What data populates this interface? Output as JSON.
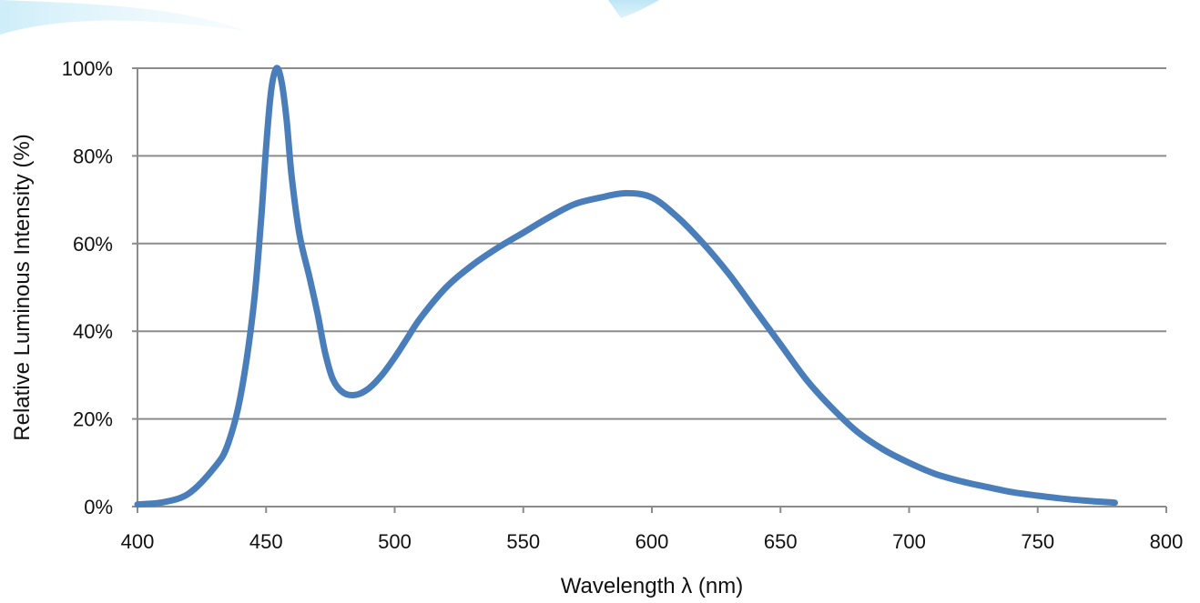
{
  "chart_data": {
    "type": "line",
    "title": "",
    "xlabel": "Wavelength λ (nm)",
    "ylabel": "Relative Luminous Intensity (%)",
    "xlim": [
      400,
      800
    ],
    "ylim": [
      0,
      100
    ],
    "x_ticks": [
      400,
      450,
      500,
      550,
      600,
      650,
      700,
      750,
      800
    ],
    "x_tick_labels": [
      "400",
      "450",
      "500",
      "550",
      "600",
      "650",
      "700",
      "750",
      "800"
    ],
    "y_ticks": [
      0,
      20,
      40,
      60,
      80,
      100
    ],
    "y_tick_labels": [
      "0%",
      "20%",
      "40%",
      "60%",
      "80%",
      "100%"
    ],
    "grid": "horizontal",
    "legend": "none",
    "series": [
      {
        "color": "#4a7ebb",
        "points": [
          [
            400,
            0.5
          ],
          [
            410,
            1.0
          ],
          [
            420,
            3.0
          ],
          [
            430,
            9.0
          ],
          [
            435,
            14.0
          ],
          [
            440,
            25.0
          ],
          [
            445,
            45.0
          ],
          [
            448,
            65.0
          ],
          [
            450,
            82.0
          ],
          [
            452,
            95.0
          ],
          [
            454,
            100.0
          ],
          [
            456,
            97.0
          ],
          [
            458,
            88.0
          ],
          [
            460,
            75.0
          ],
          [
            463,
            62.0
          ],
          [
            467,
            52.0
          ],
          [
            470,
            44.0
          ],
          [
            473,
            35.0
          ],
          [
            476,
            29.0
          ],
          [
            480,
            26.0
          ],
          [
            485,
            25.5
          ],
          [
            490,
            27.0
          ],
          [
            495,
            30.0
          ],
          [
            500,
            34.0
          ],
          [
            505,
            38.5
          ],
          [
            510,
            43.0
          ],
          [
            520,
            50.0
          ],
          [
            530,
            55.0
          ],
          [
            540,
            59.0
          ],
          [
            550,
            62.5
          ],
          [
            560,
            66.0
          ],
          [
            570,
            69.0
          ],
          [
            580,
            70.5
          ],
          [
            590,
            71.5
          ],
          [
            600,
            70.5
          ],
          [
            610,
            66.0
          ],
          [
            620,
            60.0
          ],
          [
            630,
            53.0
          ],
          [
            640,
            45.0
          ],
          [
            650,
            37.0
          ],
          [
            660,
            29.0
          ],
          [
            670,
            22.5
          ],
          [
            680,
            17.0
          ],
          [
            690,
            13.0
          ],
          [
            700,
            10.0
          ],
          [
            710,
            7.5
          ],
          [
            720,
            5.8
          ],
          [
            730,
            4.5
          ],
          [
            740,
            3.3
          ],
          [
            750,
            2.5
          ],
          [
            760,
            1.8
          ],
          [
            770,
            1.3
          ],
          [
            780,
            0.9
          ]
        ]
      }
    ]
  }
}
